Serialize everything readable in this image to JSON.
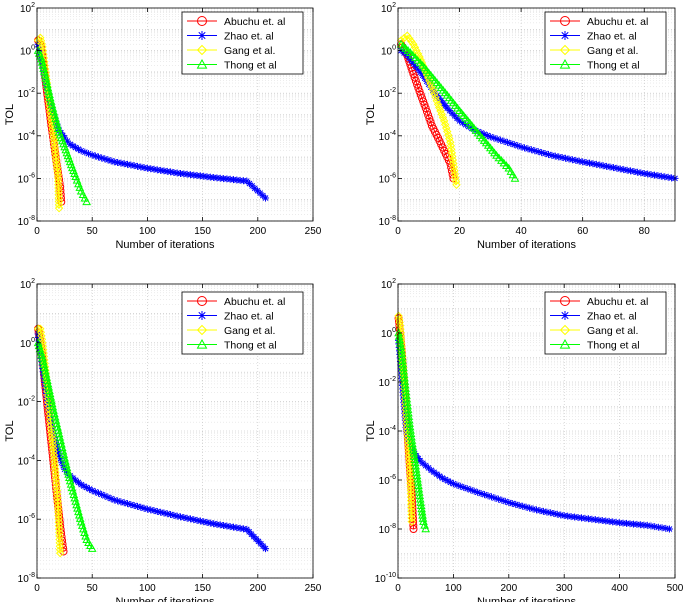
{
  "chart_data": [
    {
      "type": "line",
      "title": "",
      "xlabel": "Number of iterations",
      "ylabel": "TOL",
      "xlim": [
        0,
        250
      ],
      "xticks": [
        0,
        50,
        100,
        150,
        200,
        250
      ],
      "yscale": "log",
      "yexp": [
        -8,
        2
      ],
      "grid": true,
      "legend_position": "top-right",
      "series": [
        {
          "name": "Abuchu et. al",
          "color": "#ff0000",
          "marker": "circle",
          "x": [
            1,
            3,
            5,
            7,
            9,
            11,
            13,
            15,
            17,
            19,
            21,
            22
          ],
          "y": [
            3,
            2,
            0.5,
            0.08,
            0.012,
            0.002,
            0.0003,
            6e-05,
            1e-05,
            2e-06,
            4e-07,
            8e-08
          ]
        },
        {
          "name": "Zhao et. al",
          "color": "#0000ff",
          "marker": "star",
          "x": [
            1,
            3,
            6,
            10,
            15,
            20,
            25,
            30,
            40,
            50,
            70,
            100,
            130,
            160,
            190,
            207
          ],
          "y": [
            2,
            0.8,
            0.12,
            0.01,
            0.001,
            0.00018,
            8e-05,
            4e-05,
            2e-05,
            1.25e-05,
            6e-06,
            3e-06,
            1.7e-06,
            1.1e-06,
            7.5e-07,
            1.2e-07
          ]
        },
        {
          "name": "Gang et al.",
          "color": "#ffff00",
          "marker": "diamond",
          "x": [
            1,
            3,
            5,
            7,
            9,
            11,
            13,
            15,
            17,
            19,
            20
          ],
          "y": [
            3,
            4,
            1.5,
            0.2,
            0.03,
            0.004,
            0.0006,
            0.0001,
            1e-05,
            1.5e-06,
            4e-08
          ]
        },
        {
          "name": "Thong et al",
          "color": "#00ff00",
          "marker": "triangle",
          "x": [
            1,
            4,
            8,
            12,
            16,
            20,
            25,
            30,
            35,
            40,
            45
          ],
          "y": [
            1,
            0.4,
            0.05,
            0.006,
            0.0009,
            0.00015,
            3e-05,
            6e-06,
            1.2e-06,
            2.5e-07,
            8e-08
          ]
        }
      ]
    },
    {
      "type": "line",
      "title": "",
      "xlabel": "Number of iterations",
      "ylabel": "TOL",
      "xlim": [
        0,
        90
      ],
      "xticks": [
        0,
        20,
        40,
        60,
        80
      ],
      "yscale": "log",
      "yexp": [
        -8,
        2
      ],
      "grid": true,
      "legend_position": "top-right",
      "series": [
        {
          "name": "Abuchu et. al",
          "color": "#ff0000",
          "marker": "circle",
          "x": [
            1,
            3,
            5,
            7,
            9,
            11,
            13,
            15,
            17,
            18
          ],
          "y": [
            2,
            0.6,
            0.08,
            0.012,
            0.002,
            0.0003,
            8e-05,
            2e-05,
            5e-06,
            1e-06
          ]
        },
        {
          "name": "Zhao et. al",
          "color": "#0000ff",
          "marker": "star",
          "x": [
            1,
            3,
            5,
            8,
            12,
            16,
            20,
            25,
            30,
            40,
            50,
            60,
            70,
            80,
            90
          ],
          "y": [
            1,
            0.6,
            0.25,
            0.07,
            0.01,
            0.002,
            0.0005,
            0.00018,
            9e-05,
            3e-05,
            1.2e-05,
            6e-06,
            3.2e-06,
            1.7e-06,
            1e-06
          ]
        },
        {
          "name": "Gang et al.",
          "color": "#ffff00",
          "marker": "diamond",
          "x": [
            1,
            3,
            5,
            7,
            9,
            11,
            13,
            15,
            17,
            19
          ],
          "y": [
            3,
            5,
            2,
            0.5,
            0.1,
            0.02,
            0.003,
            0.0005,
            5e-05,
            5e-07
          ]
        },
        {
          "name": "Thong et al",
          "color": "#00ff00",
          "marker": "triangle",
          "x": [
            1,
            4,
            8,
            12,
            16,
            20,
            24,
            28,
            32,
            36,
            38
          ],
          "y": [
            2,
            0.8,
            0.2,
            0.04,
            0.008,
            0.0015,
            0.0003,
            6e-05,
            1.2e-05,
            3e-06,
            1e-06
          ]
        }
      ]
    },
    {
      "type": "line",
      "title": "",
      "xlabel": "Number of iterations",
      "ylabel": "TOL",
      "xlim": [
        0,
        250
      ],
      "xticks": [
        0,
        50,
        100,
        150,
        200,
        250
      ],
      "yscale": "log",
      "yexp": [
        -8,
        2
      ],
      "grid": true,
      "legend_position": "top-right",
      "series": [
        {
          "name": "Abuchu et. al",
          "color": "#ff0000",
          "marker": "circle",
          "x": [
            1,
            3,
            5,
            7,
            9,
            11,
            13,
            15,
            17,
            19,
            21,
            24
          ],
          "y": [
            3,
            1,
            0.3,
            0.05,
            0.01,
            0.002,
            0.0004,
            8e-05,
            1.5e-05,
            3e-06,
            6e-07,
            8e-08
          ]
        },
        {
          "name": "Zhao et. al",
          "color": "#0000ff",
          "marker": "star",
          "x": [
            1,
            3,
            6,
            10,
            15,
            20,
            25,
            30,
            40,
            50,
            70,
            100,
            130,
            160,
            190,
            207
          ],
          "y": [
            2,
            0.5,
            0.08,
            0.008,
            0.0008,
            0.00015,
            5e-05,
            3e-05,
            1.5e-05,
            9.5e-06,
            4.5e-06,
            2.2e-06,
            1.2e-06,
            7e-07,
            4.5e-07,
            1e-07
          ]
        },
        {
          "name": "Gang et al.",
          "color": "#ffff00",
          "marker": "diamond",
          "x": [
            1,
            3,
            5,
            7,
            9,
            11,
            13,
            15,
            17,
            19,
            21
          ],
          "y": [
            3,
            3,
            1,
            0.2,
            0.04,
            0.007,
            0.0012,
            0.0002,
            3e-05,
            3e-06,
            7e-08
          ]
        },
        {
          "name": "Thong et al",
          "color": "#00ff00",
          "marker": "triangle",
          "x": [
            1,
            5,
            10,
            15,
            20,
            25,
            30,
            35,
            40,
            45,
            50
          ],
          "y": [
            1,
            0.3,
            0.04,
            0.005,
            0.0008,
            0.00012,
            2e-05,
            4e-06,
            8e-07,
            2e-07,
            1e-07
          ]
        }
      ]
    },
    {
      "type": "line",
      "title": "",
      "xlabel": "Number of iterations",
      "ylabel": "TOL",
      "xlim": [
        0,
        500
      ],
      "xticks": [
        0,
        100,
        200,
        300,
        400,
        500
      ],
      "yscale": "log",
      "yexp": [
        -10,
        2
      ],
      "grid": true,
      "legend_position": "top-right",
      "series": [
        {
          "name": "Abuchu et. al",
          "color": "#ff0000",
          "marker": "circle",
          "x": [
            1,
            4,
            7,
            10,
            13,
            16,
            19,
            22,
            25,
            28
          ],
          "y": [
            4,
            1,
            0.15,
            0.02,
            0.002,
            0.0002,
            2e-05,
            2e-06,
            2e-07,
            1e-08
          ]
        },
        {
          "name": "Zhao et. al",
          "color": "#0000ff",
          "marker": "star",
          "x": [
            1,
            5,
            10,
            15,
            20,
            30,
            40,
            60,
            80,
            100,
            150,
            200,
            250,
            300,
            350,
            400,
            450,
            490
          ],
          "y": [
            0.5,
            0.05,
            0.002,
            0.0001,
            3e-05,
            1.2e-05,
            6e-06,
            2.5e-06,
            1.2e-06,
            7e-07,
            2.8e-07,
            1.2e-07,
            6e-08,
            3.5e-08,
            2.5e-08,
            1.8e-08,
            1.4e-08,
            1e-08
          ]
        },
        {
          "name": "Gang et al.",
          "color": "#ffff00",
          "marker": "diamond",
          "x": [
            1,
            4,
            7,
            10,
            13,
            16,
            19,
            22,
            25
          ],
          "y": [
            5,
            2,
            0.2,
            0.02,
            0.002,
            0.0002,
            2e-05,
            2e-06,
            2e-08
          ]
        },
        {
          "name": "Thong et al",
          "color": "#00ff00",
          "marker": "triangle",
          "x": [
            1,
            6,
            11,
            16,
            21,
            26,
            31,
            36,
            41,
            46,
            50
          ],
          "y": [
            1,
            0.2,
            0.02,
            0.002,
            0.0002,
            3e-05,
            5e-06,
            8e-07,
            1.2e-07,
            2e-08,
            1e-08
          ]
        }
      ]
    }
  ]
}
